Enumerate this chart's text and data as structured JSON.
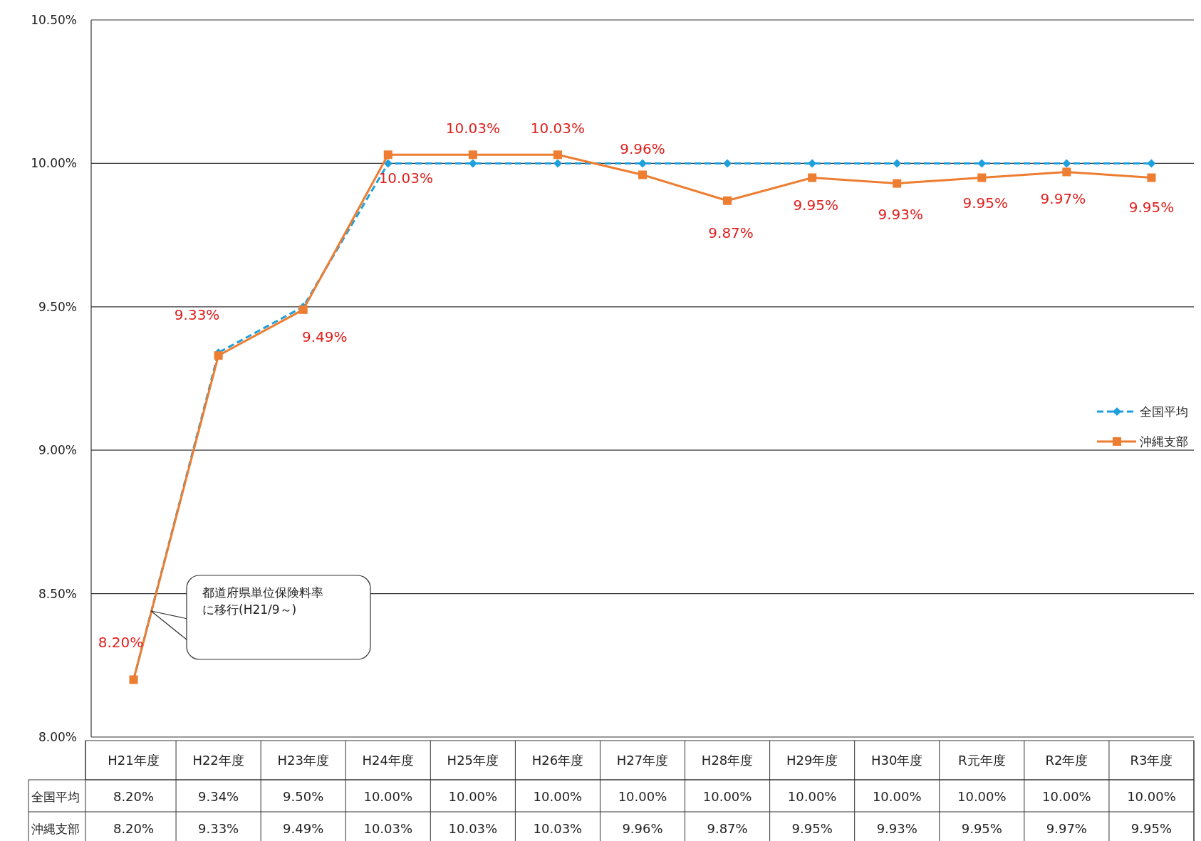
{
  "chart_data": {
    "type": "line",
    "categories": [
      "H21年度",
      "H22年度",
      "H23年度",
      "H24年度",
      "H25年度",
      "H26年度",
      "H27年度",
      "H28年度",
      "H29年度",
      "H30年度",
      "R元年度",
      "R2年度",
      "R3年度"
    ],
    "series": [
      {
        "name": "全国平均",
        "color": "#1ea0dc",
        "line_style": "dashed",
        "marker": "diamond",
        "values": [
          8.2,
          9.34,
          9.5,
          10.0,
          10.0,
          10.0,
          10.0,
          10.0,
          10.0,
          10.0,
          10.0,
          10.0,
          10.0
        ],
        "value_labels": [
          "8.20%",
          "9.34%",
          "9.50%",
          "10.00%",
          "10.00%",
          "10.00%",
          "10.00%",
          "10.00%",
          "10.00%",
          "10.00%",
          "10.00%",
          "10.00%",
          "10.00%"
        ]
      },
      {
        "name": "沖縄支部",
        "color": "#ed7d31",
        "line_style": "solid",
        "marker": "square",
        "values": [
          8.2,
          9.33,
          9.49,
          10.03,
          10.03,
          10.03,
          9.96,
          9.87,
          9.95,
          9.93,
          9.95,
          9.97,
          9.95
        ],
        "value_labels": [
          "8.20%",
          "9.33%",
          "9.49%",
          "10.03%",
          "10.03%",
          "10.03%",
          "9.96%",
          "9.87%",
          "9.95%",
          "9.93%",
          "9.95%",
          "9.97%",
          "9.95%"
        ]
      }
    ],
    "ylim": [
      8.0,
      10.5
    ],
    "yticks": [
      {
        "value": 8.0,
        "label": "8.00%"
      },
      {
        "value": 8.5,
        "label": "8.50%"
      },
      {
        "value": 9.0,
        "label": "9.00%"
      },
      {
        "value": 9.5,
        "label": "9.50%"
      },
      {
        "value": 10.0,
        "label": "10.00%"
      },
      {
        "value": 10.5,
        "label": "10.50%"
      }
    ],
    "grid": "y",
    "legend": "right",
    "annotations": [
      "都道府県単位保険料率に移行(H21/9～)"
    ]
  }
}
